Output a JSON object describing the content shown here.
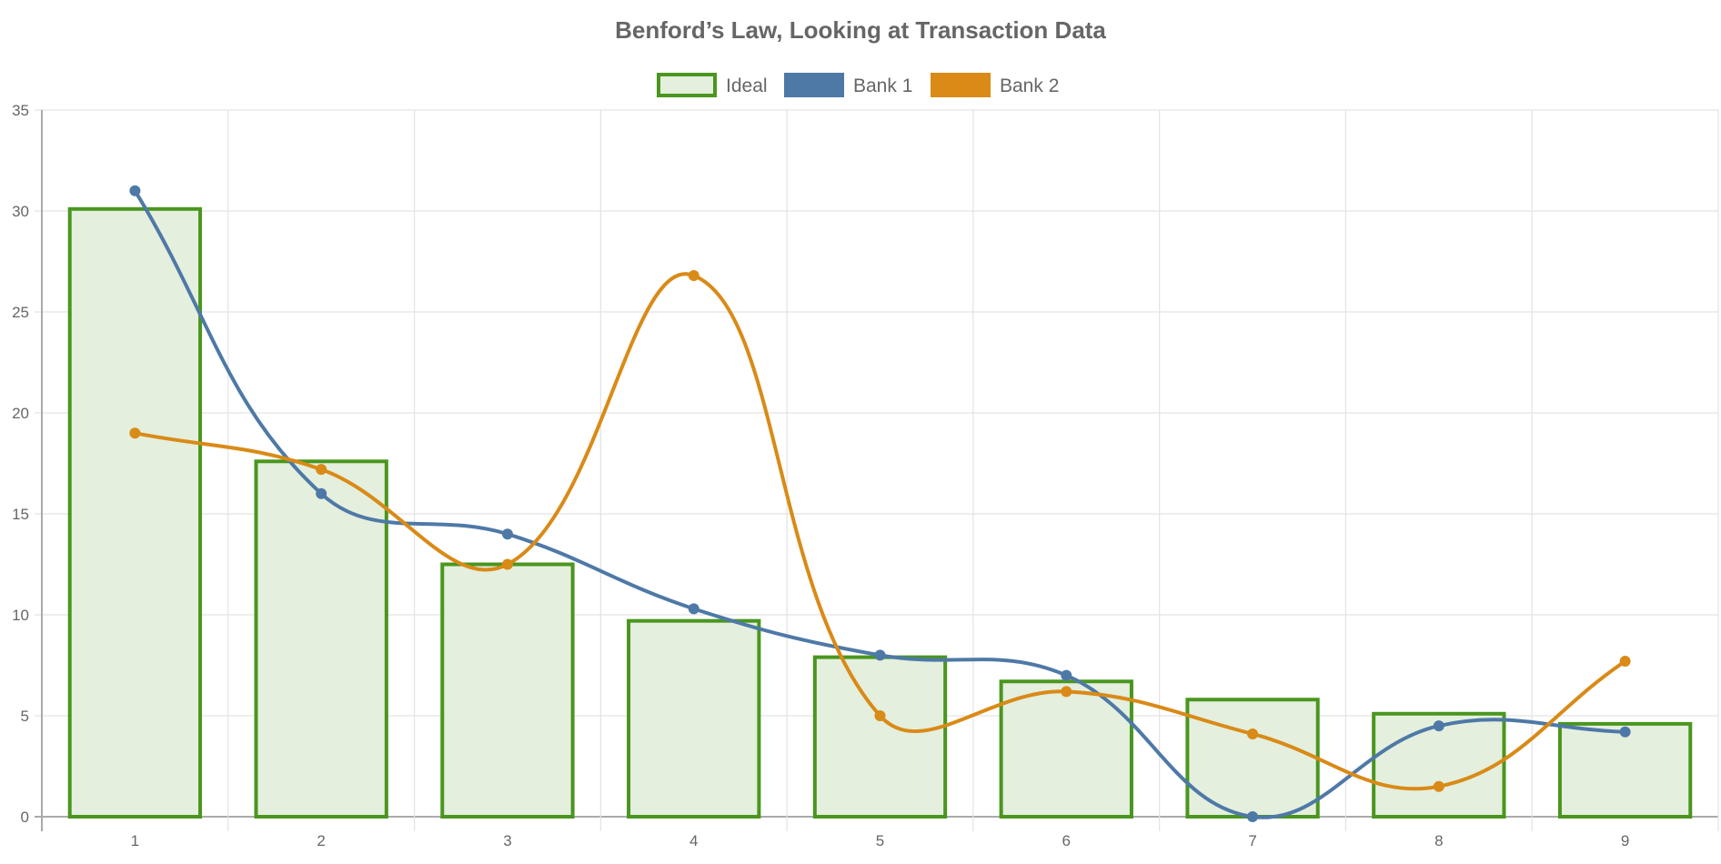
{
  "chart_data": {
    "type": "bar",
    "title": "Benford’s Law, Looking at Transaction Data",
    "categories": [
      "1",
      "2",
      "3",
      "4",
      "5",
      "6",
      "7",
      "8",
      "9"
    ],
    "ylim": [
      0,
      35
    ],
    "yticks": [
      "0",
      "5",
      "10",
      "15",
      "20",
      "25",
      "30",
      "35"
    ],
    "grid": true,
    "legend_position": "top-center",
    "series": [
      {
        "name": "Ideal",
        "kind": "bar",
        "color": "#4a961f",
        "fill": "#e4efdd",
        "values": [
          30.1,
          17.6,
          12.5,
          9.7,
          7.9,
          6.7,
          5.8,
          5.1,
          4.6
        ]
      },
      {
        "name": "Bank 1",
        "kind": "line",
        "color": "#4e79a7",
        "values": [
          31,
          16,
          14,
          10.3,
          8,
          7,
          0,
          4.5,
          4.2
        ]
      },
      {
        "name": "Bank 2",
        "kind": "line",
        "color": "#d98a17",
        "values": [
          19,
          17.2,
          12.5,
          26.8,
          5,
          6.2,
          4.1,
          1.5,
          7.7
        ]
      }
    ]
  }
}
